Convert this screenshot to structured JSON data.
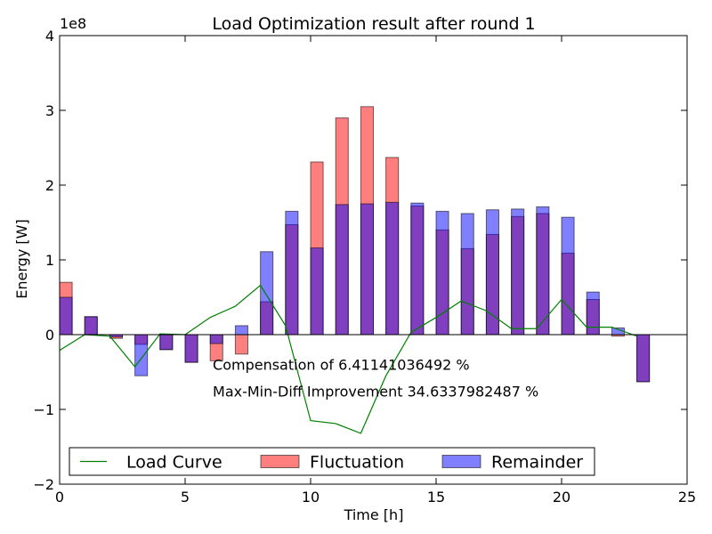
{
  "chart_data": {
    "type": "bar",
    "title": "Load Optimization result after round 1",
    "xlabel": "Time [h]",
    "ylabel": "Energy [W]",
    "y_multiplier_label": "1e8",
    "xlim": [
      0,
      25
    ],
    "ylim": [
      -2,
      4
    ],
    "y_scale_factor": 100000000,
    "x_ticks": [
      0,
      5,
      10,
      15,
      20,
      25
    ],
    "x_tick_labels": [
      "0",
      "5",
      "10",
      "15",
      "20",
      "25"
    ],
    "y_ticks": [
      -2,
      -1,
      0,
      1,
      2,
      3,
      4
    ],
    "y_tick_labels": [
      "−2",
      "−1",
      "0",
      "1",
      "2",
      "3",
      "4"
    ],
    "bar_width": 0.5,
    "x": [
      0,
      1,
      2,
      3,
      4,
      5,
      6,
      7,
      8,
      9,
      10,
      11,
      12,
      13,
      14,
      15,
      16,
      17,
      18,
      19,
      20,
      21,
      22,
      23
    ],
    "series": [
      {
        "name": "Load Curve",
        "kind": "line",
        "color": "#008000",
        "x": [
          0,
          1,
          2,
          3,
          4,
          5,
          6,
          7,
          8,
          9,
          10,
          11,
          12,
          13,
          14,
          15,
          16,
          17,
          18,
          19,
          20,
          21,
          22,
          23
        ],
        "values": [
          -0.21,
          0.0,
          -0.02,
          -0.43,
          0.01,
          0.0,
          0.23,
          0.38,
          0.66,
          0.12,
          -1.15,
          -1.19,
          -1.32,
          -0.55,
          0.03,
          0.23,
          0.45,
          0.32,
          0.08,
          0.08,
          0.47,
          0.1,
          0.1,
          -0.02
        ]
      },
      {
        "name": "Fluctuation",
        "kind": "bar",
        "color": "#ff0000",
        "alpha": 0.5,
        "values": [
          0.7,
          0.24,
          -0.05,
          -0.13,
          -0.2,
          -0.37,
          -0.35,
          -0.26,
          0.44,
          1.47,
          2.31,
          2.9,
          3.05,
          2.37,
          1.72,
          1.4,
          1.15,
          1.34,
          1.58,
          1.62,
          1.09,
          0.47,
          -0.02,
          -0.63
        ]
      },
      {
        "name": "Remainder",
        "kind": "bar",
        "color": "#0000ff",
        "alpha": 0.5,
        "values": [
          0.5,
          0.24,
          -0.03,
          -0.55,
          -0.2,
          -0.37,
          -0.12,
          0.12,
          1.11,
          1.65,
          1.16,
          1.74,
          1.75,
          1.77,
          1.76,
          1.65,
          1.62,
          1.67,
          1.68,
          1.71,
          1.57,
          0.57,
          0.09,
          -0.63
        ]
      }
    ],
    "annotations": [
      {
        "text": "Compensation of 6.41141036492 %",
        "x": 6.1,
        "y": -0.47
      },
      {
        "text": "Max-Min-Diff Improvement 34.6337982487 %",
        "x": 6.1,
        "y": -0.83
      }
    ],
    "legend": {
      "position": "lower center",
      "columns": 3
    },
    "grid": false
  }
}
